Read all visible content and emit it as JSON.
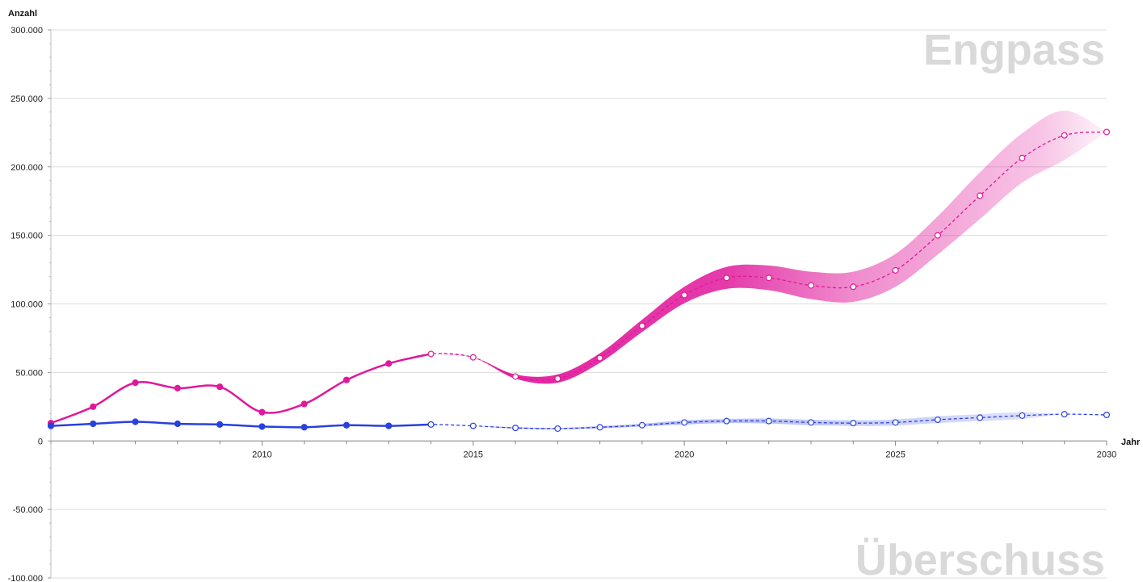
{
  "chart_data": {
    "type": "line",
    "ylabel": "Anzahl",
    "xlabel": "Jahr",
    "watermarks": {
      "top": "Engpass",
      "bottom": "Überschuss"
    },
    "xlim": [
      2005,
      2030
    ],
    "ylim": [
      -100000,
      300000
    ],
    "xticks": [
      2010,
      2015,
      2020,
      2025,
      2030
    ],
    "yticks": [
      -100000,
      -50000,
      0,
      50000,
      100000,
      150000,
      200000,
      250000,
      300000
    ],
    "ytick_labels": [
      "-100.000",
      "-50.000",
      "0",
      "50.000",
      "100.000",
      "150.000",
      "200.000",
      "250.000",
      "300.000"
    ],
    "grid": "horizontal",
    "colors": {
      "engpass": "#e0189b",
      "ueberschuss": "#2940e0"
    },
    "series": [
      {
        "key": "engpass",
        "actual": {
          "x": [
            2005,
            2006,
            2007,
            2008,
            2009,
            2010,
            2011,
            2012,
            2013
          ],
          "y": [
            13000,
            25000,
            42500,
            38500,
            39500,
            21000,
            27000,
            44500,
            56500
          ]
        },
        "projection": {
          "x": [
            2014,
            2015,
            2016,
            2017,
            2018,
            2019,
            2020,
            2021,
            2022,
            2023,
            2024,
            2025,
            2026,
            2027,
            2028,
            2029,
            2030
          ],
          "y": [
            63500,
            61000,
            47000,
            45500,
            60500,
            84000,
            106500,
            119000,
            119000,
            113500,
            112500,
            124500,
            150000,
            179000,
            206500,
            223000,
            225500
          ],
          "band_halfwidth": [
            0,
            0,
            1500,
            3000,
            3500,
            4500,
            6000,
            8000,
            9000,
            10000,
            11000,
            12000,
            14000,
            17000,
            18000,
            18000,
            0
          ]
        }
      },
      {
        "key": "ueberschuss",
        "actual": {
          "x": [
            2005,
            2006,
            2007,
            2008,
            2009,
            2010,
            2011,
            2012,
            2013
          ],
          "y": [
            11000,
            12500,
            14000,
            12500,
            12000,
            10500,
            10000,
            11500,
            11000
          ]
        },
        "projection": {
          "x": [
            2014,
            2015,
            2016,
            2017,
            2018,
            2019,
            2020,
            2021,
            2022,
            2023,
            2024,
            2025,
            2026,
            2027,
            2028,
            2029,
            2030
          ],
          "y": [
            12000,
            11000,
            9500,
            9000,
            10000,
            11500,
            13500,
            14500,
            14500,
            13500,
            13000,
            13500,
            15500,
            17000,
            18500,
            19500,
            19000
          ],
          "band_halfwidth": [
            0,
            0,
            500,
            500,
            800,
            1000,
            1500,
            1500,
            1800,
            2000,
            2000,
            2200,
            2500,
            2500,
            2500,
            0,
            0
          ]
        }
      }
    ]
  }
}
